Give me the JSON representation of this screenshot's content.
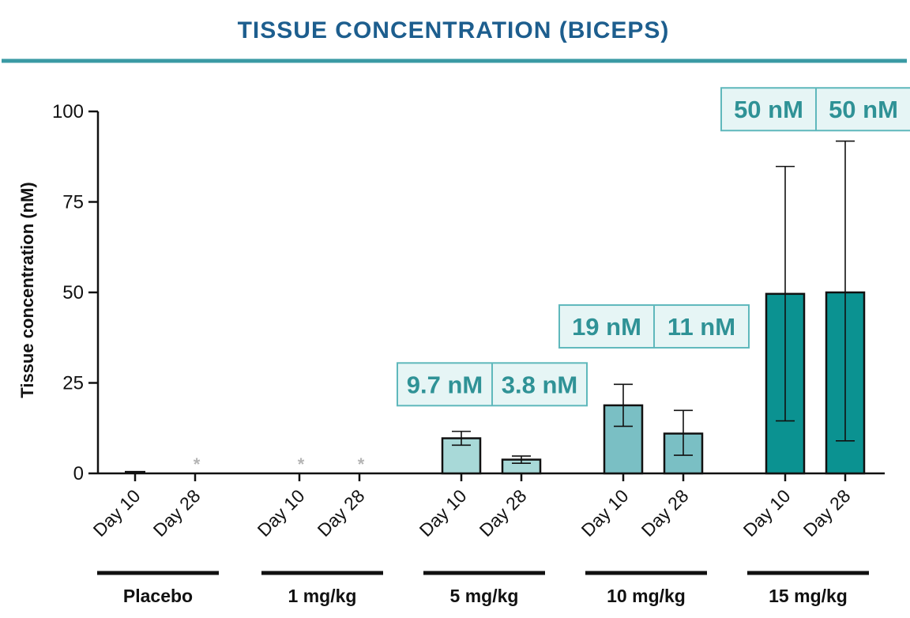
{
  "colors": {
    "title": "#1d5e8e",
    "rule": "#3a9aa4",
    "box_fill": "#e6f5f5",
    "box_border": "#5fb8bc",
    "box_text": "#2f9296",
    "asterisk": "#b5b5b5",
    "axis": "#111111",
    "dose_5": "#a8d9d8",
    "dose_10": "#7abfc4",
    "dose_15": "#0b9291"
  },
  "chart_data": {
    "type": "bar",
    "title": "TISSUE CONCENTRATION (BICEPS)",
    "ylabel": "Tissue concentration (nM)",
    "xlabel": "",
    "ylim": [
      0,
      100
    ],
    "yticks": [
      "0",
      "25",
      "50",
      "75",
      "100"
    ],
    "grid": false,
    "legend": "none",
    "groups": [
      {
        "name": "Placebo",
        "color_key": "dose_5",
        "bars": [
          {
            "label": "Day 10",
            "value": 0.4,
            "err_low": 0.4,
            "err_high": 0.4,
            "marker": ""
          },
          {
            "label": "Day 28",
            "value": 0,
            "err_low": 0,
            "err_high": 0,
            "marker": "*"
          }
        ]
      },
      {
        "name": "1 mg/kg",
        "color_key": "dose_5",
        "bars": [
          {
            "label": "Day 10",
            "value": 0,
            "err_low": 0,
            "err_high": 0,
            "marker": "*"
          },
          {
            "label": "Day 28",
            "value": 0,
            "err_low": 0,
            "err_high": 0,
            "marker": "*"
          }
        ]
      },
      {
        "name": "5 mg/kg",
        "color_key": "dose_5",
        "boxes": [
          "9.7 nM",
          "3.8 nM"
        ],
        "box_top_value": 30.5,
        "bars": [
          {
            "label": "Day 10",
            "value": 9.7,
            "err_low": 7.8,
            "err_high": 11.6,
            "marker": ""
          },
          {
            "label": "Day 28",
            "value": 3.8,
            "err_low": 2.8,
            "err_high": 4.8,
            "marker": ""
          }
        ]
      },
      {
        "name": "10 mg/kg",
        "color_key": "dose_10",
        "boxes": [
          "19 nM",
          "11 nM"
        ],
        "box_top_value": 46.5,
        "bars": [
          {
            "label": "Day 10",
            "value": 18.8,
            "err_low": 13.0,
            "err_high": 24.6,
            "marker": ""
          },
          {
            "label": "Day 28",
            "value": 11.0,
            "err_low": 5.0,
            "err_high": 17.4,
            "marker": ""
          }
        ]
      },
      {
        "name": "15 mg/kg",
        "color_key": "dose_15",
        "boxes": [
          "50 nM",
          "50 nM"
        ],
        "box_top_value": 106.5,
        "bars": [
          {
            "label": "Day 10",
            "value": 49.6,
            "err_low": 14.5,
            "err_high": 84.8,
            "marker": ""
          },
          {
            "label": "Day 28",
            "value": 50.0,
            "err_low": 9.0,
            "err_high": 91.8,
            "marker": ""
          }
        ]
      }
    ]
  }
}
